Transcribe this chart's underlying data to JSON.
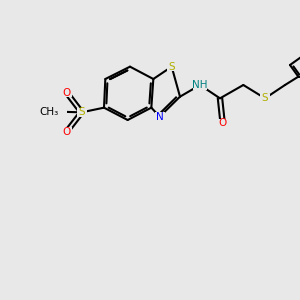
{
  "background_color": "#e8e8e8",
  "bond_color": "#000000",
  "bond_lw": 1.5,
  "colors": {
    "S": "#b0b000",
    "O": "#ff0000",
    "N": "#0000ff",
    "NH": "#008080",
    "C": "#000000"
  },
  "font_size": 7.5
}
